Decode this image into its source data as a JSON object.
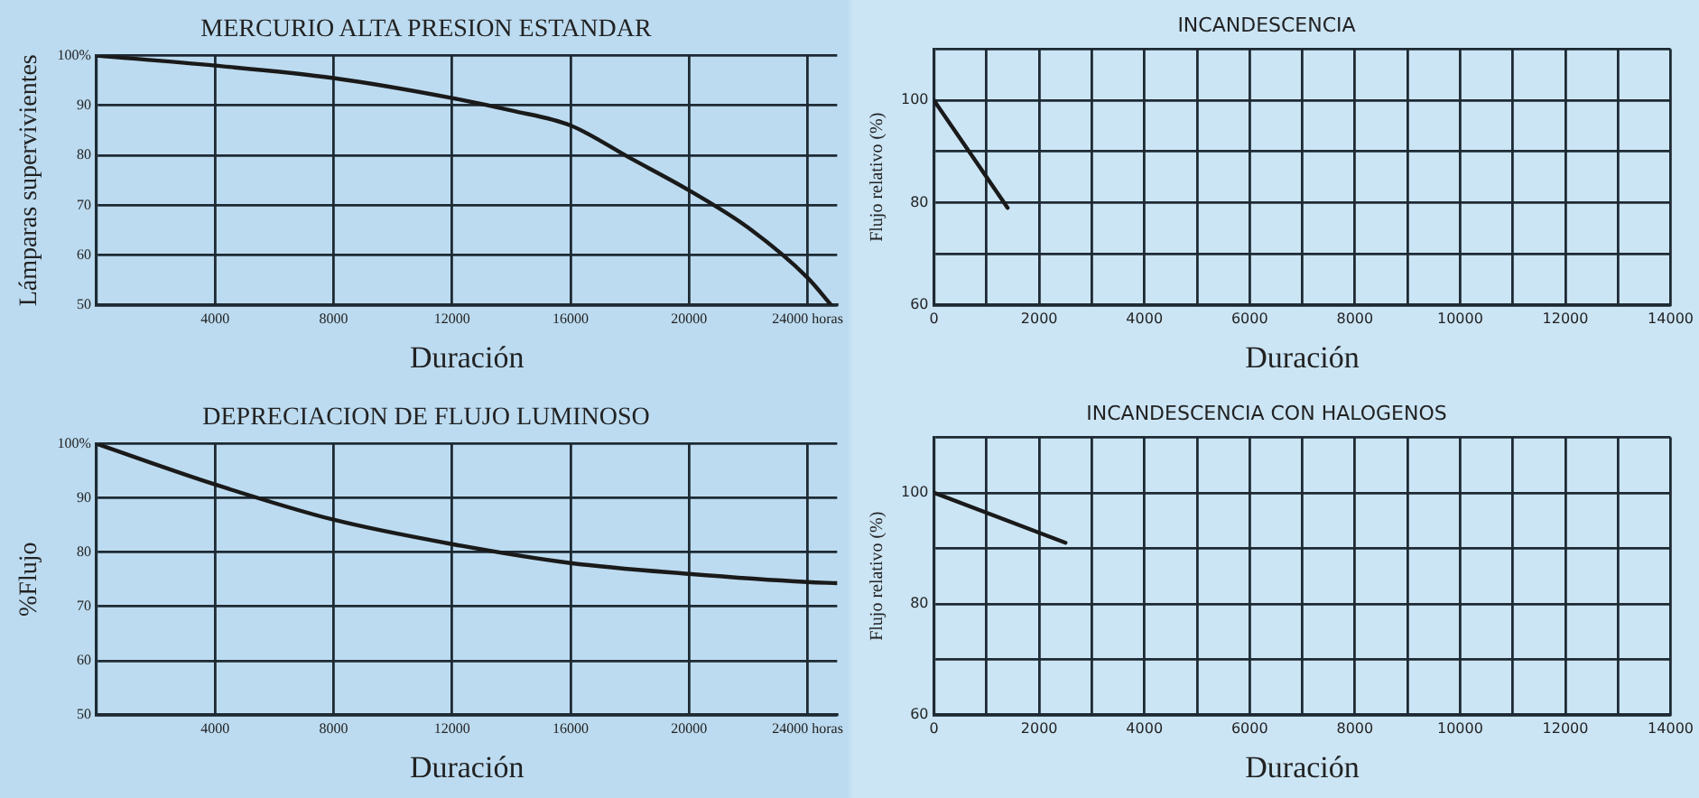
{
  "chart_data": [
    {
      "type": "line",
      "title": "MERCURIO ALTA PRESION ESTANDAR",
      "xlabel": "Duración",
      "ylabel": "Lámparas supervivientes",
      "grid": true,
      "marker": "none",
      "line_style": "solid",
      "x": [
        0,
        4000,
        8000,
        12000,
        14000,
        16000,
        18000,
        20000,
        22000,
        24000,
        24800
      ],
      "values": [
        100,
        98,
        95.5,
        91.5,
        89,
        86,
        79.5,
        73,
        65.5,
        55.5,
        50
      ],
      "color": "#1a1a1a",
      "xlim": [
        0,
        25000
      ],
      "xticks": [
        4000,
        8000,
        12000,
        16000,
        20000,
        {
          "value": 24000,
          "label": "24000 horas"
        }
      ],
      "ylim": [
        50,
        100
      ],
      "yticks": [
        50,
        60,
        70,
        80,
        90,
        {
          "value": 100,
          "label": "100%"
        }
      ]
    },
    {
      "type": "line",
      "title": "DEPRECIACION DE FLUJO LUMINOSO",
      "xlabel": "Duración",
      "ylabel": "%Flujo",
      "grid": true,
      "marker": "none",
      "line_style": "solid",
      "x": [
        0,
        4000,
        8000,
        12000,
        16000,
        20000,
        24000,
        25000
      ],
      "values": [
        100,
        92.5,
        86,
        81.5,
        78,
        76,
        74.5,
        74.3
      ],
      "color": "#1a1a1a",
      "xlim": [
        0,
        25000
      ],
      "xticks": [
        4000,
        8000,
        12000,
        16000,
        20000,
        {
          "value": 24000,
          "label": "24000 horas"
        }
      ],
      "ylim": [
        50,
        100
      ],
      "yticks": [
        50,
        60,
        70,
        80,
        90,
        {
          "value": 100,
          "label": "100%"
        }
      ]
    },
    {
      "type": "line",
      "title": "INCANDESCENCIA",
      "xlabel": "Duración",
      "ylabel": "Flujo relativo (%)",
      "grid": true,
      "marker": "none",
      "line_style": "solid",
      "x": [
        0,
        1400
      ],
      "values": [
        100,
        79
      ],
      "color": "#1a1a1a",
      "xlim": [
        0,
        14000
      ],
      "xticks": [
        0,
        {
          "value": 1000,
          "label": null
        },
        2000,
        {
          "value": 3000,
          "label": null
        },
        4000,
        {
          "value": 5000,
          "label": null
        },
        6000,
        {
          "value": 7000,
          "label": null
        },
        8000,
        {
          "value": 9000,
          "label": null
        },
        10000,
        {
          "value": 11000,
          "label": null
        },
        12000,
        {
          "value": 13000,
          "label": null
        },
        14000
      ],
      "ylim": [
        60,
        110
      ],
      "yticks": [
        60,
        {
          "value": 70,
          "label": null
        },
        80,
        {
          "value": 90,
          "label": null
        },
        100,
        {
          "value": 110,
          "label": null
        }
      ]
    },
    {
      "type": "line",
      "title": "INCANDESCENCIA CON HALOGENOS",
      "xlabel": "Duración",
      "ylabel": "Flujo relativo (%)",
      "grid": true,
      "marker": "none",
      "line_style": "solid",
      "x": [
        0,
        2500
      ],
      "values": [
        100,
        91
      ],
      "color": "#1a1a1a",
      "xlim": [
        0,
        14000
      ],
      "xticks": [
        0,
        {
          "value": 1000,
          "label": null
        },
        2000,
        {
          "value": 3000,
          "label": null
        },
        4000,
        {
          "value": 5000,
          "label": null
        },
        6000,
        {
          "value": 7000,
          "label": null
        },
        8000,
        {
          "value": 9000,
          "label": null
        },
        10000,
        {
          "value": 11000,
          "label": null
        },
        12000,
        {
          "value": 13000,
          "label": null
        },
        14000
      ],
      "ylim": [
        60,
        110
      ],
      "yticks": [
        60,
        {
          "value": 70,
          "label": null
        },
        80,
        {
          "value": 90,
          "label": null
        },
        100,
        {
          "value": 110,
          "label": null
        }
      ]
    }
  ]
}
